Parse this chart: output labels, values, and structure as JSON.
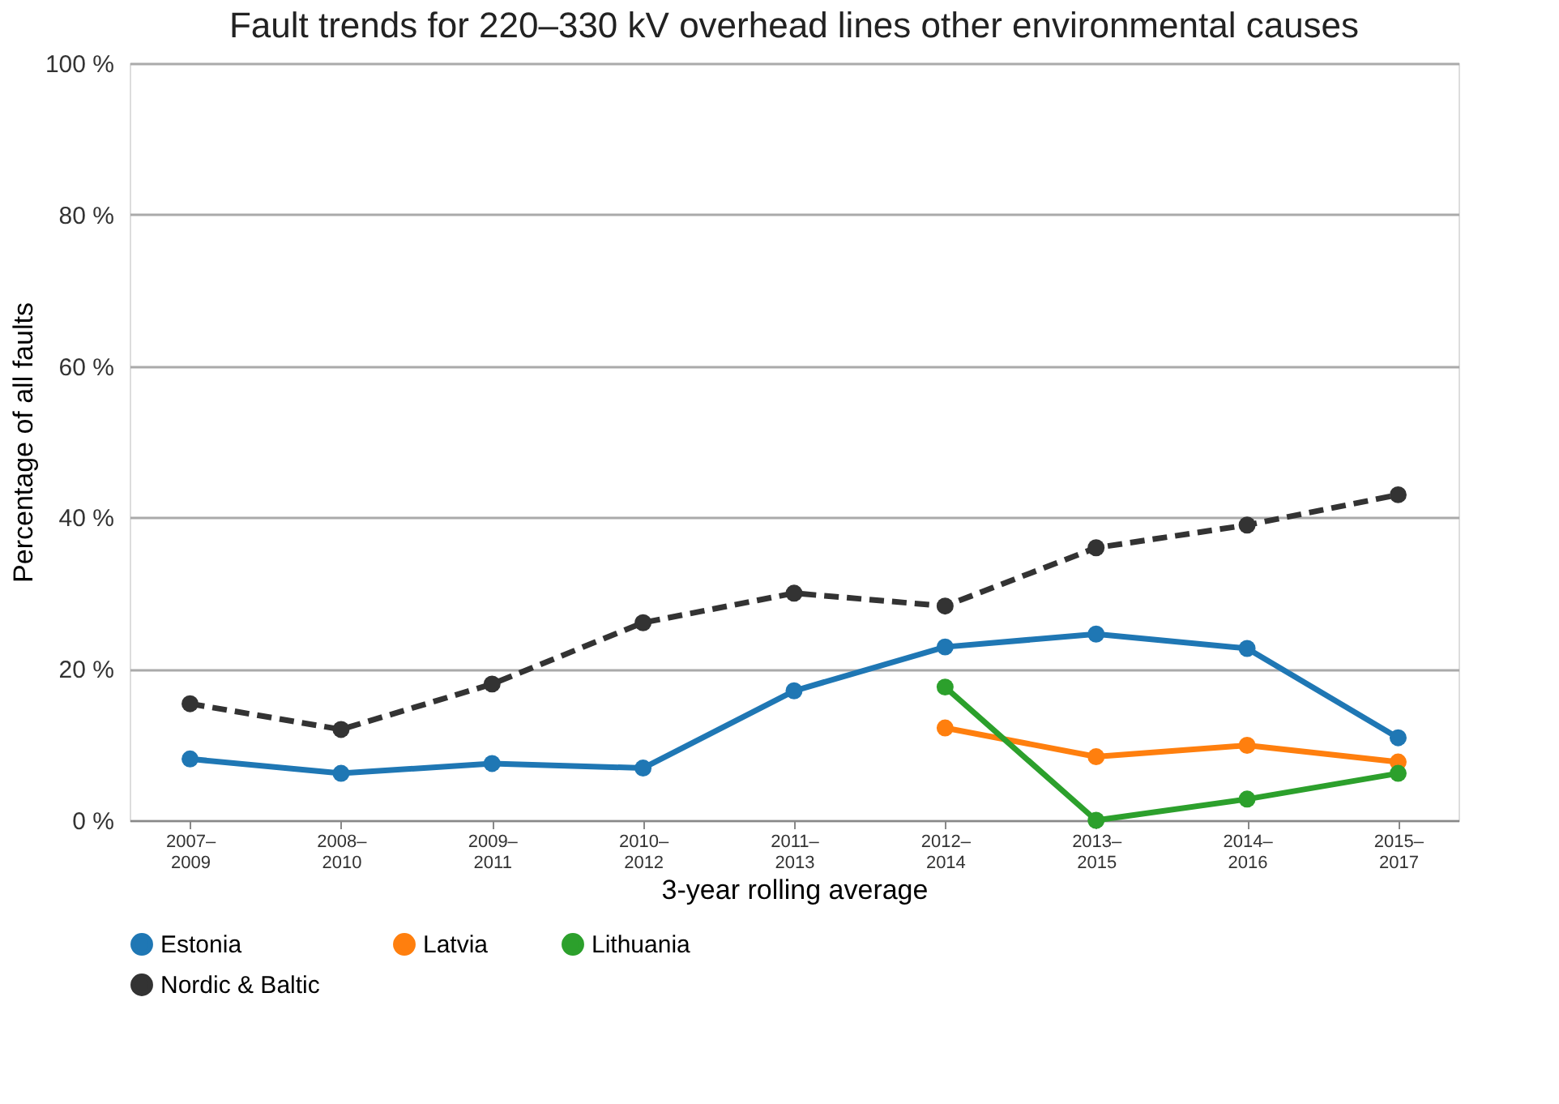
{
  "chart_data": {
    "type": "line",
    "title": "Fault trends for 220–330 kV overhead lines other environmental causes",
    "xlabel": "3-year rolling average",
    "ylabel": "Percentage of all faults",
    "categories": [
      "2007–\n2009",
      "2008–\n2010",
      "2009–\n2011",
      "2010–\n2012",
      "2011–\n2013",
      "2012–\n2014",
      "2013–\n2015",
      "2014–\n2016",
      "2015–\n2017"
    ],
    "series": [
      {
        "name": "Estonia",
        "color": "#1f77b4",
        "values": [
          8.1,
          6.2,
          7.5,
          6.9,
          17.1,
          22.9,
          24.6,
          22.7,
          10.9
        ]
      },
      {
        "name": "Latvia",
        "color": "#ff7f0e",
        "values": [
          null,
          null,
          null,
          null,
          null,
          12.2,
          8.4,
          9.9,
          7.7
        ]
      },
      {
        "name": "Lithuania",
        "color": "#2ca02c",
        "values": [
          null,
          null,
          null,
          null,
          null,
          17.6,
          0,
          2.8,
          6.2
        ]
      },
      {
        "name": "Nordic & Baltic",
        "color": "#333333",
        "line_style": "dashed",
        "values": [
          15.4,
          12.0,
          18.0,
          26.1,
          30.0,
          28.3,
          36.0,
          39.0,
          43.0
        ]
      }
    ],
    "ylim": [
      0,
      100
    ],
    "yticks": [
      {
        "value": 0,
        "label": "0 %"
      },
      {
        "value": 20,
        "label": "20 %"
      },
      {
        "value": 40,
        "label": "40 %"
      },
      {
        "value": 60,
        "label": "60 %"
      },
      {
        "value": 80,
        "label": "80 %"
      },
      {
        "value": 100,
        "label": "100 %"
      }
    ],
    "grid": "y",
    "legend": "bottom",
    "marker": "circle",
    "line_style": "solid"
  }
}
